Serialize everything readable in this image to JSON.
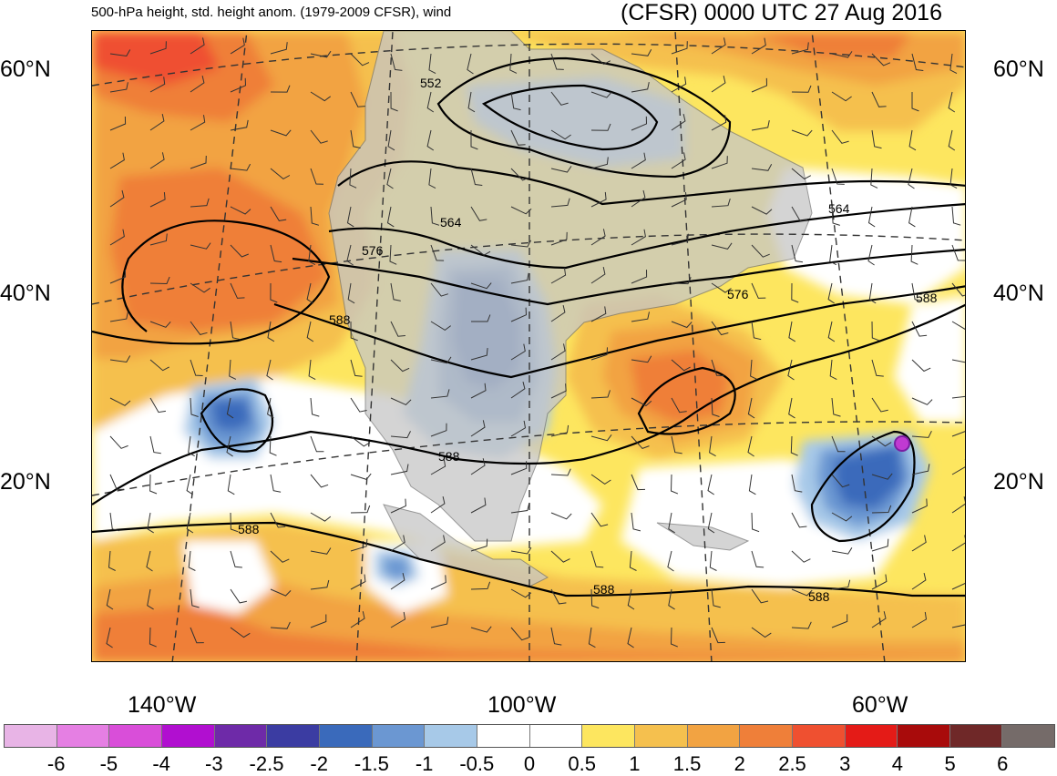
{
  "title": {
    "left": "500-hPa height, std. height anom. (1979-2009 CFSR), wind",
    "right": "(CFSR) 0000 UTC 27 Aug 2016"
  },
  "lat_labels": [
    "60°N",
    "40°N",
    "20°N"
  ],
  "lon_labels": [
    "140°W",
    "100°W",
    "60°W"
  ],
  "contour_labels": [
    "552",
    "564",
    "576",
    "588",
    "564",
    "576",
    "588",
    "588",
    "588",
    "588",
    "588"
  ],
  "colorbar": {
    "ticks": [
      "-6",
      "-5",
      "-4",
      "-3",
      "-2.5",
      "-2",
      "-1.5",
      "-1",
      "-0.5",
      "0",
      "0.5",
      "1",
      "1.5",
      "2",
      "2.5",
      "3",
      "4",
      "5",
      "6"
    ],
    "colors": [
      "#e8b4e6",
      "#e57fe3",
      "#d94ed9",
      "#b10fd0",
      "#6e2aa8",
      "#3b3ca2",
      "#3a6abb",
      "#6b97d2",
      "#a7c9e8",
      "#ffffff",
      "#ffffff",
      "#fde65f",
      "#f5c04e",
      "#f2a342",
      "#ef7f39",
      "#ef5030",
      "#e41b17",
      "#a80b0b",
      "#6f2828",
      "#756b69"
    ]
  }
}
